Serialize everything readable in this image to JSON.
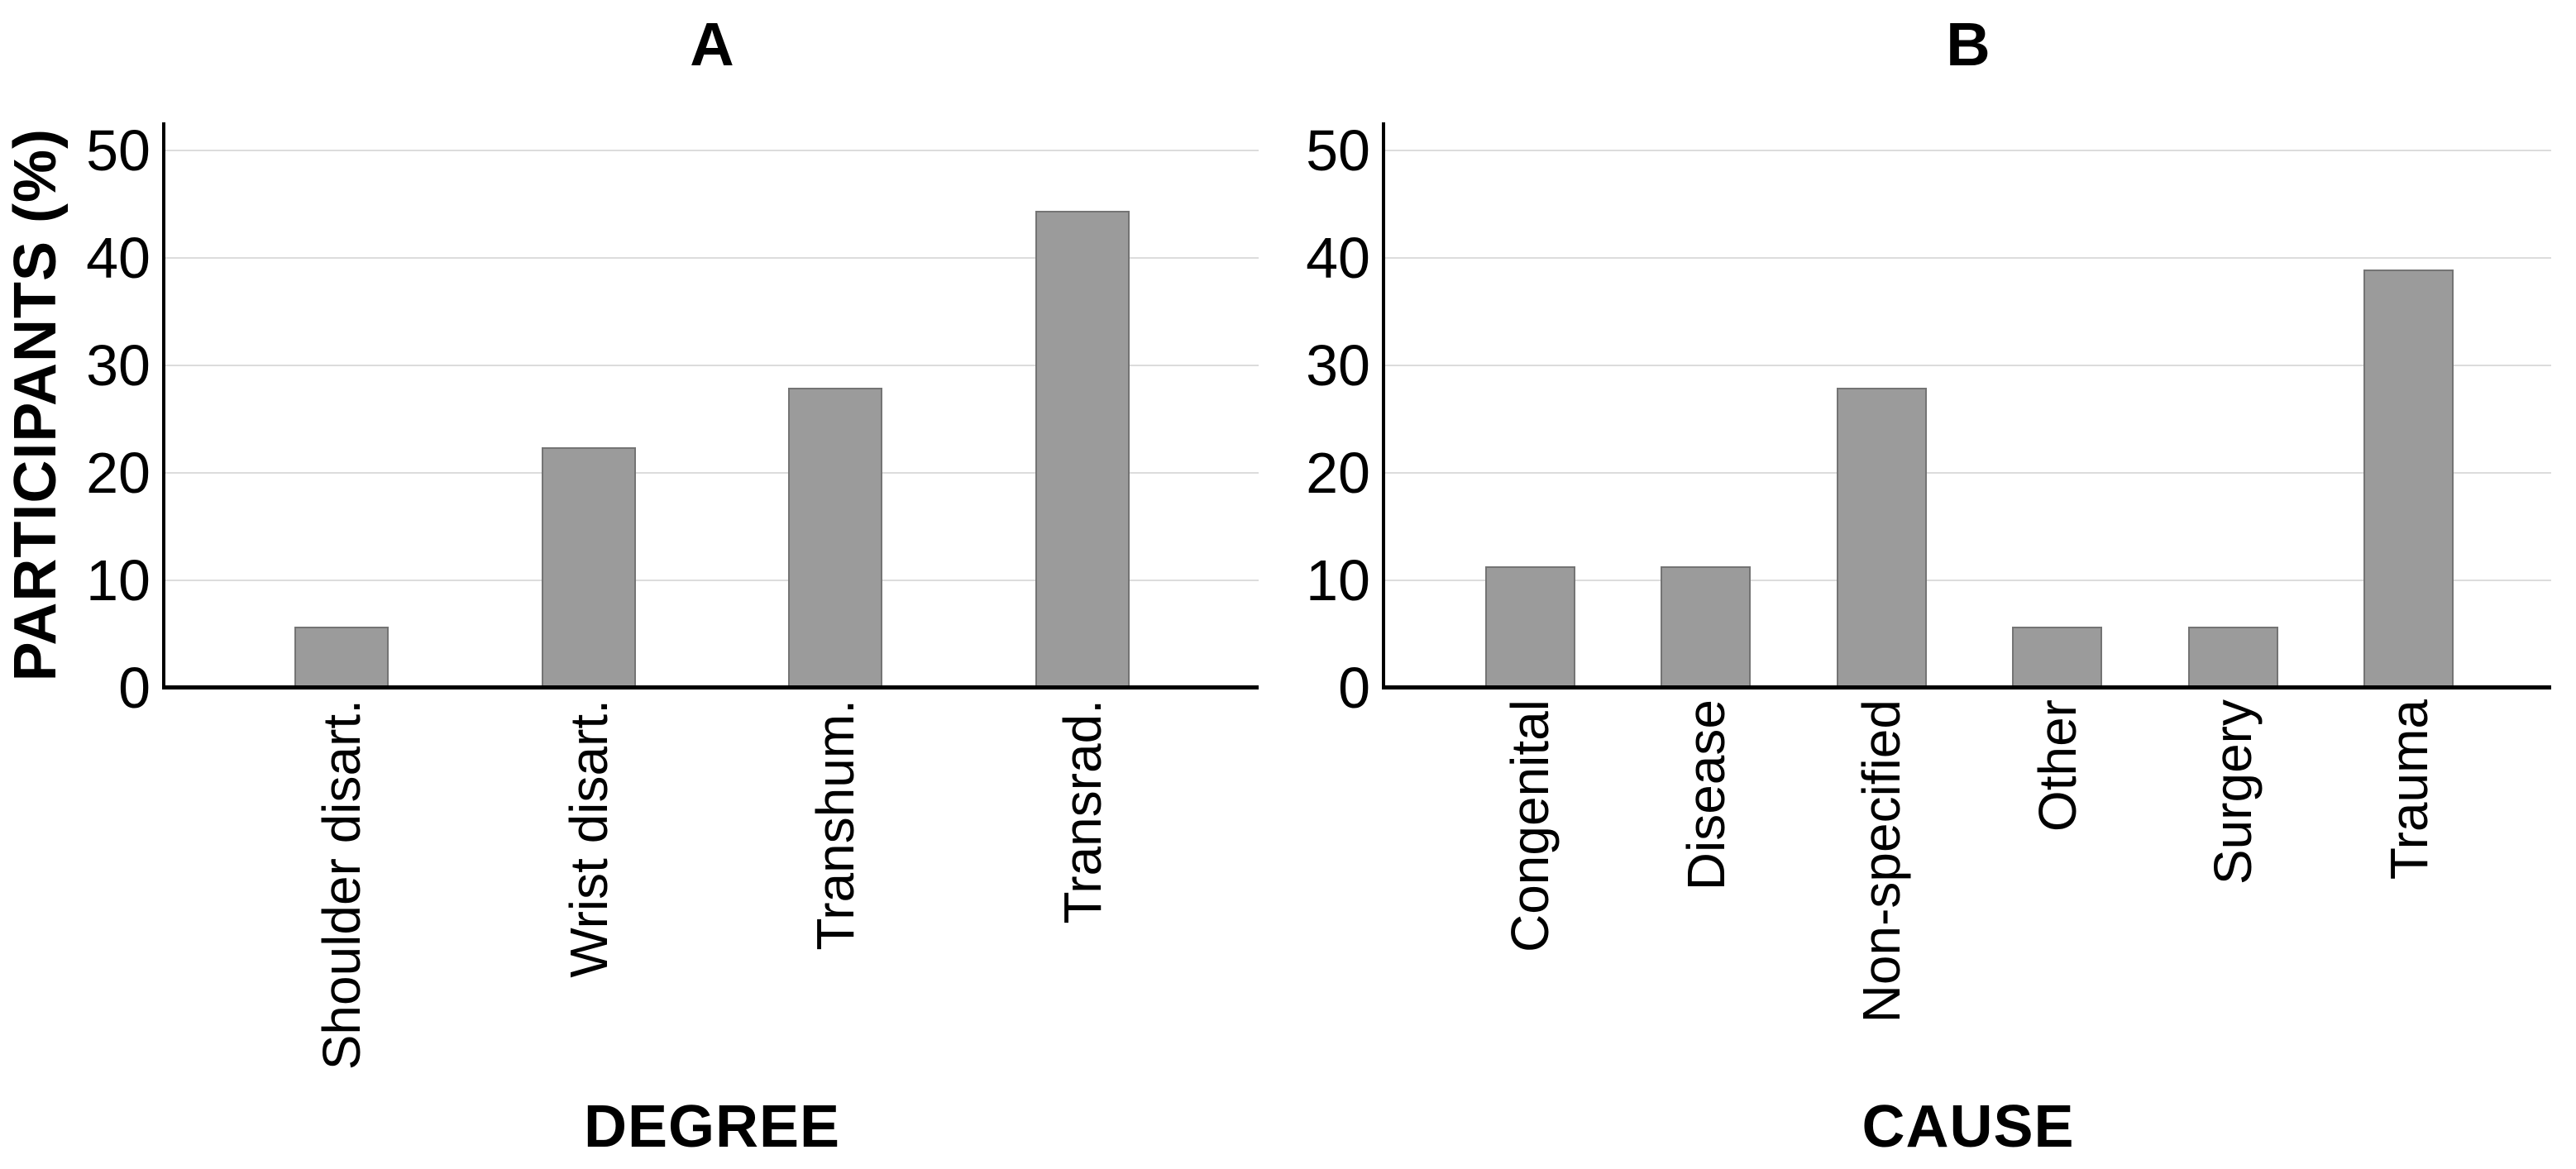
{
  "figure": {
    "y_axis_title": "PARTICIPANTS (%)",
    "colors": {
      "bar_fill": "#9b9b9b",
      "bar_border": "#747474",
      "gridline": "#dcdcdc",
      "axis": "#000000",
      "text": "#000000",
      "background": "#ffffff"
    }
  },
  "chart_data": [
    {
      "type": "bar",
      "panel_label": "A",
      "title": "A",
      "xlabel": "DEGREE",
      "ylabel": "PARTICIPANTS (%)",
      "categories": [
        "Shoulder disart.",
        "Wrist disart.",
        "Transhum.",
        "Transrad."
      ],
      "values": [
        5.7,
        22.4,
        27.9,
        44.4
      ],
      "ylim": [
        0,
        50
      ],
      "yticks": [
        0,
        10,
        20,
        30,
        40,
        50
      ],
      "grid": true,
      "legend": false,
      "bar_color": "#9b9b9b"
    },
    {
      "type": "bar",
      "panel_label": "B",
      "title": "B",
      "xlabel": "CAUSE",
      "ylabel": "",
      "categories": [
        "Congenital",
        "Disease",
        "Non-specified",
        "Other",
        "Surgery",
        "Trauma"
      ],
      "values": [
        11.3,
        11.3,
        27.9,
        5.7,
        5.7,
        38.9
      ],
      "ylim": [
        0,
        50
      ],
      "yticks": [
        0,
        10,
        20,
        30,
        40,
        50
      ],
      "grid": true,
      "legend": false,
      "bar_color": "#9b9b9b"
    }
  ]
}
